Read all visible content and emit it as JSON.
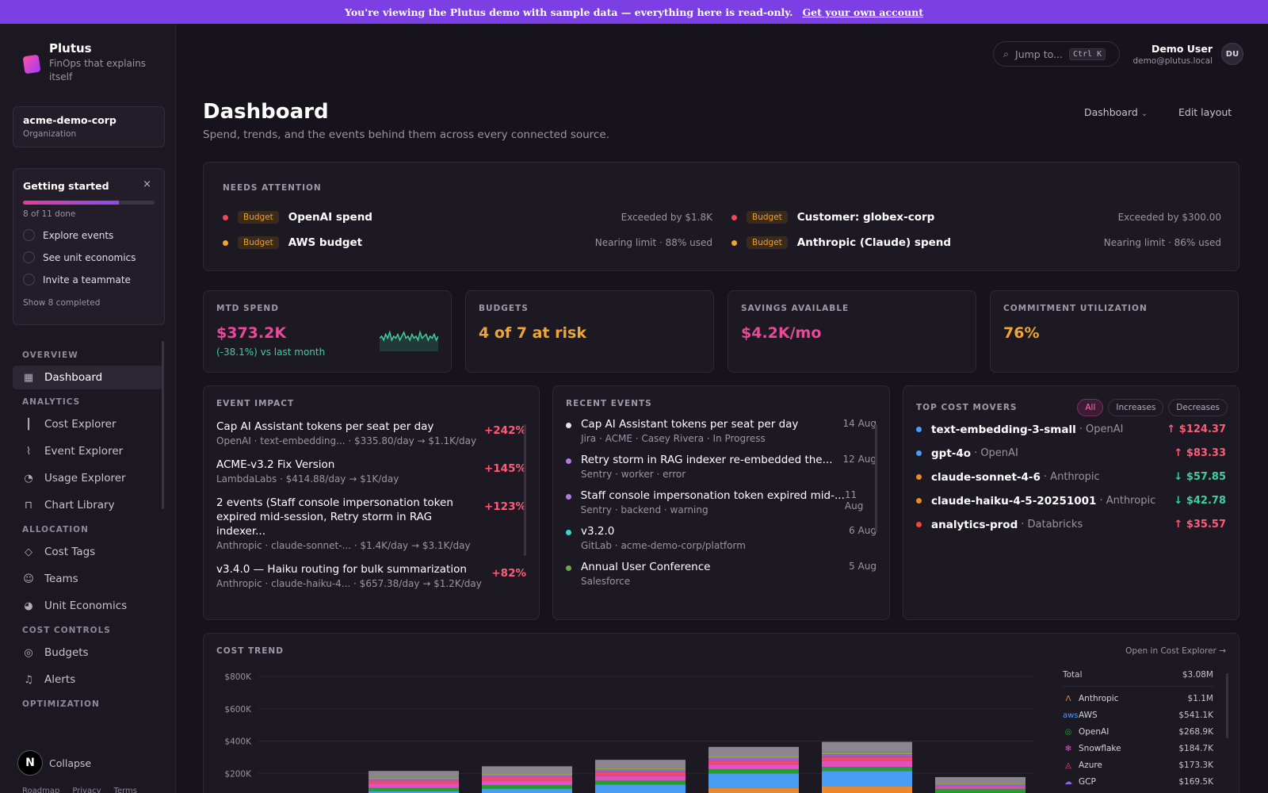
{
  "banner": {
    "text": "You're viewing the Plutus demo with sample data — everything here is read-only.",
    "link": "Get your own account"
  },
  "brand": {
    "name": "Plutus",
    "tagline": "FinOps that explains itself"
  },
  "org": {
    "name": "acme-demo-corp",
    "type": "Organization"
  },
  "getting_started": {
    "title": "Getting started",
    "close": "×",
    "progress": 0.73,
    "progress_text": "8 of 11 done",
    "items": [
      "Explore events",
      "See unit economics",
      "Invite a teammate"
    ],
    "show_completed": "Show 8 completed"
  },
  "nav": {
    "overview": "OVERVIEW",
    "dashboard": "Dashboard",
    "analytics": "ANALYTICS",
    "cost_explorer": "Cost Explorer",
    "event_explorer": "Event Explorer",
    "usage_explorer": "Usage Explorer",
    "chart_library": "Chart Library",
    "allocation": "ALLOCATION",
    "cost_tags": "Cost Tags",
    "teams": "Teams",
    "unit_economics": "Unit Economics",
    "cost_controls": "COST CONTROLS",
    "budgets": "Budgets",
    "alerts": "Alerts",
    "optimization": "OPTIMIZATION"
  },
  "collapse": "Collapse",
  "n_badge": "N",
  "footer_links": [
    "Roadmap",
    "Privacy",
    "Terms"
  ],
  "search": {
    "placeholder": "Jump to...",
    "shortcut": "Ctrl K"
  },
  "user": {
    "name": "Demo User",
    "email": "demo@plutus.local",
    "initials": "DU"
  },
  "page": {
    "title": "Dashboard",
    "subtitle": "Spend, trends, and the events behind them across every connected source.",
    "selector": "Dashboard",
    "edit_layout": "Edit layout"
  },
  "attention": {
    "header": "NEEDS ATTENTION",
    "items": [
      {
        "badge": "Budget",
        "name": "OpenAI spend",
        "status": "Exceeded by $1.8K",
        "color": "#f0475c"
      },
      {
        "badge": "Budget",
        "name": "Customer: globex-corp",
        "status": "Exceeded by $300.00",
        "color": "#f0475c"
      },
      {
        "badge": "Budget",
        "name": "AWS budget",
        "status": "Nearing limit · 88% used",
        "color": "#f0a531"
      },
      {
        "badge": "Budget",
        "name": "Anthropic (Claude) spend",
        "status": "Nearing limit · 86% used",
        "color": "#f0a531"
      }
    ]
  },
  "kpis": {
    "mtd": {
      "label": "MTD SPEND",
      "value": "$373.2K",
      "change": "(-38.1%) vs last month",
      "spark": [
        5,
        6,
        4,
        7,
        5,
        8,
        4,
        6,
        5,
        7,
        4,
        6,
        8,
        5,
        6,
        4,
        7,
        5,
        6,
        4,
        8,
        5,
        6,
        7,
        4,
        6,
        5,
        7,
        4,
        6
      ]
    },
    "budgets": {
      "label": "BUDGETS",
      "value": "4 of 7 at risk"
    },
    "savings": {
      "label": "SAVINGS AVAILABLE",
      "value": "$4.2K/mo"
    },
    "commit": {
      "label": "COMMITMENT UTILIZATION",
      "value": "76%"
    }
  },
  "event_impact": {
    "header": "EVENT IMPACT",
    "items": [
      {
        "title": "Cap AI Assistant tokens per seat per day",
        "sub": "OpenAI · text-embedding... · $335.80/day → $1.1K/day",
        "pct": "+242%"
      },
      {
        "title": "ACME-v3.2 Fix Version",
        "sub": "LambdaLabs · $414.88/day → $1K/day",
        "pct": "+145%"
      },
      {
        "title": "2 events (Staff console impersonation token expired mid-session, Retry storm in RAG indexer...",
        "sub": "Anthropic · claude-sonnet-... · $1.4K/day → $3.1K/day",
        "pct": "+123%"
      },
      {
        "title": "v3.4.0 — Haiku routing for bulk summarization",
        "sub": "Anthropic · claude-haiku-4... · $657.38/day → $1.2K/day",
        "pct": "+82%"
      }
    ]
  },
  "recent_events": {
    "header": "RECENT EVENTS",
    "items": [
      {
        "title": "Cap AI Assistant tokens per seat per day",
        "sub": "Jira · ACME · Casey Rivera · In Progress",
        "date": "14 Aug",
        "color": "#e6e1ee"
      },
      {
        "title": "Retry storm in RAG indexer re-embedded the...",
        "sub": "Sentry · worker · error",
        "date": "12 Aug",
        "color": "#b07ae0"
      },
      {
        "title": "Staff console impersonation token expired mid-...",
        "sub": "Sentry · backend · warning",
        "date": "11 Aug",
        "color": "#b07ae0"
      },
      {
        "title": "v3.2.0",
        "sub": "GitLab · acme-demo-corp/platform",
        "date": "6 Aug",
        "color": "#3fd6c6"
      },
      {
        "title": "Annual User Conference",
        "sub": "Salesforce",
        "date": "5 Aug",
        "color": "#6aa84f"
      }
    ]
  },
  "top_movers": {
    "header": "TOP COST MOVERS",
    "filters": [
      "All",
      "Increases",
      "Decreases"
    ],
    "items": [
      {
        "name": "text-embedding-3-small",
        "provider": "· OpenAI",
        "value": "↑ $124.37",
        "dot": "#4a9cf5",
        "color": "#ff5c78"
      },
      {
        "name": "gpt-4o",
        "provider": "· OpenAI",
        "value": "↑ $83.33",
        "dot": "#4a9cf5",
        "color": "#ff5c78"
      },
      {
        "name": "claude-sonnet-4-6",
        "provider": "· Anthropic",
        "value": "↓ $57.85",
        "dot": "#e8892d",
        "color": "#3fcf9b"
      },
      {
        "name": "claude-haiku-4-5-20251001",
        "provider": "· Anthropic",
        "value": "↓ $42.78",
        "dot": "#e8892d",
        "color": "#3fcf9b"
      },
      {
        "name": "analytics-prod",
        "provider": "· Databricks",
        "value": "↑ $35.57",
        "dot": "#f0473c",
        "color": "#ff5c78"
      }
    ]
  },
  "cost_trend": {
    "header": "COST TREND",
    "open_link": "Open in Cost Explorer →",
    "legend_total_label": "Total",
    "legend_total_value": "$3.08M",
    "legend": [
      {
        "icon": "anthropic-icon",
        "glyph": "Ʌ",
        "name": "Anthropic",
        "value": "$1.1M",
        "color": "#e8892d"
      },
      {
        "icon": "aws-icon",
        "glyph": "aws",
        "name": "AWS",
        "value": "$541.1K",
        "color": "#4a9cf5"
      },
      {
        "icon": "openai-icon",
        "glyph": "◎",
        "name": "OpenAI",
        "value": "$268.9K",
        "color": "#22a02e"
      },
      {
        "icon": "snowflake-icon",
        "glyph": "✻",
        "name": "Snowflake",
        "value": "$184.7K",
        "color": "#e04fc6"
      },
      {
        "icon": "azure-icon",
        "glyph": "◬",
        "name": "Azure",
        "value": "$173.3K",
        "color": "#ef4a6a"
      },
      {
        "icon": "gcp-icon",
        "glyph": "☁",
        "name": "GCP",
        "value": "$169.5K",
        "color": "#8d63f0"
      }
    ]
  },
  "chart_data": {
    "type": "bar",
    "stacked": true,
    "ylim": [
      0,
      800000
    ],
    "yticks": [
      "$800K",
      "$600K",
      "$400K",
      "$200K"
    ],
    "categories": [
      "",
      "",
      "",
      "",
      "",
      ""
    ],
    "series": [
      {
        "name": "Anthropic",
        "color": "#e8892d",
        "values": [
          0,
          10000,
          30000,
          110000,
          120000,
          20000
        ]
      },
      {
        "name": "AWS",
        "color": "#4a9cf5",
        "values": [
          90000,
          95000,
          100000,
          90000,
          95000,
          60000
        ]
      },
      {
        "name": "OpenAI",
        "color": "#22a02e",
        "values": [
          20000,
          22000,
          25000,
          25000,
          25000,
          25000
        ]
      },
      {
        "name": "Snowflake",
        "color": "#e04fc6",
        "values": [
          25000,
          28000,
          30000,
          32000,
          35000,
          10000
        ]
      },
      {
        "name": "Azure",
        "color": "#ef4a6a",
        "values": [
          20000,
          22000,
          25000,
          25000,
          28000,
          8000
        ]
      },
      {
        "name": "GCP",
        "color": "#8d63f0",
        "values": [
          10000,
          12000,
          12000,
          15000,
          15000,
          6000
        ]
      },
      {
        "name": "",
        "color": "#9aa33a",
        "values": [
          10000,
          10000,
          12000,
          12000,
          12000,
          8000
        ]
      },
      {
        "name": "",
        "color": "#8a8590",
        "values": [
          40000,
          45000,
          50000,
          55000,
          65000,
          40000
        ]
      }
    ]
  }
}
